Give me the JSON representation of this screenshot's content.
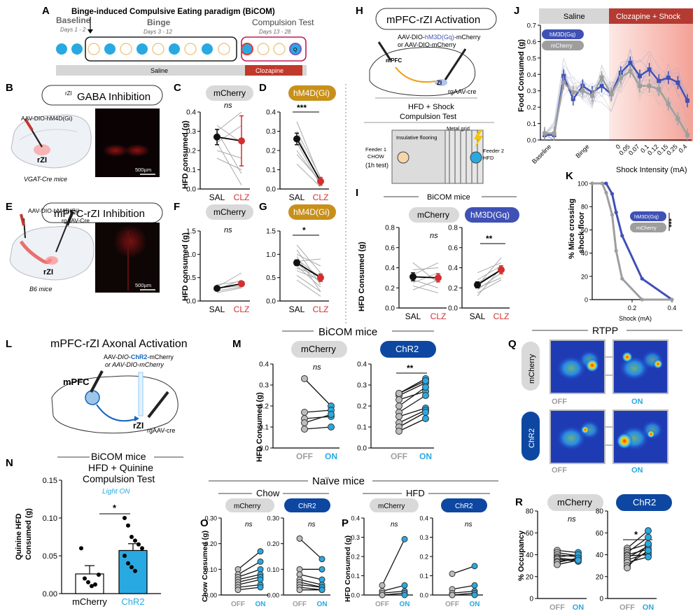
{
  "colors": {
    "saline_gray": "#4a4a4a",
    "clz_red": "#d32f2f",
    "clz_text": "#d32f2f",
    "mcherry_pill": "#d9d9d9",
    "hm4d_gold": "#c8901a",
    "hm3d_blue": "#3f51b5",
    "chr2_blue": "#0d47a1",
    "chr2_light": "#29a9e1",
    "light_on_blue": "#29a9e1",
    "gray_line": "#9e9e9e",
    "clozapine_bar": "#c0392b",
    "dot_blue": "#29a9e1"
  },
  "panelA": {
    "letter": "A",
    "title": "Binge-induced Compulsive Eating paradigm (BiCOM)",
    "phase1": "Baseline",
    "phase1_days": "Days 1 - 2",
    "phase2": "Binge",
    "phase2_days": "Days 3 - 12",
    "phase3": "Compulsion Test",
    "phase3_days": "Days 13 - 28",
    "saline_bar": "Saline",
    "clozapine_bar": "Clozapine"
  },
  "panelB": {
    "letter": "B",
    "title_sup": "rZI",
    "title_main": "GABA Inhibition",
    "virus": "AAV-DIO-hM4D(Gi)",
    "region": "rZI",
    "mice": "VGAT-Cre mice",
    "scale": "500µm"
  },
  "panelE": {
    "letter": "E",
    "title": "mPFC-rZI Inhibition",
    "virus1": "AAV-DIO-hM4D(Gi)",
    "virus2": "rgAAV-Cre",
    "region": "rZI",
    "mice": "B6 mice",
    "scale": "500µm"
  },
  "panelC": {
    "letter": "C",
    "pill": "mCherry",
    "sig": "ns",
    "ylabel": "HFD consumed (g)",
    "ticks": [
      "0.0",
      "0.1",
      "0.2",
      "0.3",
      "0.4"
    ],
    "xlabels": [
      "SAL",
      "CLZ"
    ]
  },
  "panelD": {
    "letter": "D",
    "pill": "hM4D(Gi)",
    "sig": "***",
    "ticks": [
      "0.0",
      "0.1",
      "0.2",
      "0.3",
      "0.4"
    ],
    "xlabels": [
      "SAL",
      "CLZ"
    ]
  },
  "panelF": {
    "letter": "F",
    "pill": "mCherry",
    "sig": "ns",
    "ylabel": "HFD consumed (g)",
    "ticks": [
      "0.0",
      "0.5",
      "1.0",
      "1.5"
    ],
    "xlabels": [
      "SAL",
      "CLZ"
    ]
  },
  "panelG": {
    "letter": "G",
    "pill": "hM4D(Gi)",
    "sig": "*",
    "ticks": [
      "0.0",
      "0.5",
      "1.0",
      "1.5"
    ],
    "xlabels": [
      "SAL",
      "CLZ"
    ]
  },
  "panelH": {
    "letter": "H",
    "title": "mPFC-rZI Activation",
    "virus_line1_a": "AAV-DIO-",
    "virus_line1_b": "hM3D(Gq)",
    "virus_line1_c": "-mCherry",
    "virus_line2": "or AAV-DIO-mCherry",
    "mpfc": "mPFC",
    "zi": "ZI",
    "retro": "rgAAV-cre",
    "test_title_1": "HFD + Shock",
    "test_title_2": "Compulsion Test",
    "floor1": "Insulative flooring",
    "floor2": "Metal grid",
    "feeder1_a": "Feeder 1",
    "feeder1_b": "CHOW",
    "feeder1_c": "(1h test)",
    "feeder2_a": "Feeder 2",
    "feeder2_b": "HFD"
  },
  "panelI": {
    "letter": "I",
    "header": "BiCOM mice",
    "pill1": "mCherry",
    "pill2": "hM3D(Gq)",
    "sig1": "ns",
    "sig2": "**",
    "ylabel": "HFD Consumed (g)",
    "ticks": [
      "0.0",
      "0.2",
      "0.4",
      "0.6",
      "0.8"
    ],
    "xlabels": [
      "SAL",
      "CLZ"
    ]
  },
  "panelJ": {
    "letter": "J",
    "band1": "Saline",
    "band2": "Clozapine + Shock",
    "legend1": "hM3D(Gq)",
    "legend2": "mCherry",
    "ylabel": "Food Consumed (g)",
    "xlabel": "Shock Intensity (mA)",
    "yticks": [
      "0.0",
      "0.1",
      "0.2",
      "0.3",
      "0.4",
      "0.5",
      "0.6",
      "0.7"
    ],
    "xcats": [
      "Baseline",
      "Binge",
      "0",
      "0.05",
      "0.07",
      "0.1",
      "0.12",
      "0.15",
      "0.25",
      "0.4"
    ]
  },
  "panelK": {
    "letter": "K",
    "ylabel1": "% Mice crossing",
    "ylabel2": "shock floor",
    "xlabel": "Shock (mA)",
    "legend1": "hM3D(Gq)",
    "legend2": "mCherry",
    "sig": "***",
    "yticks": [
      "0",
      "20",
      "40",
      "60",
      "80",
      "100"
    ],
    "xticks": [
      "0.2",
      "0.4"
    ]
  },
  "panelL": {
    "letter": "L",
    "title": "mPFC-rZI Axonal Activation",
    "virus_a": "AAV-",
    "virus_b": "DIO",
    "virus_c": "-",
    "virus_d": "ChR2",
    "virus_e": "-mCherry",
    "virus2": "or AAV-DIO-mCherry",
    "mpfc": "mPFC",
    "rzi": "rZI",
    "retro": "rgAAV-cre"
  },
  "panelM": {
    "letter": "M",
    "header": "BiCOM mice",
    "pill1": "mCherry",
    "pill2": "ChR2",
    "sig1": "ns",
    "sig2": "**",
    "ylabel": "HFD Consumed (g)",
    "ticks": [
      "0.0",
      "0.1",
      "0.2",
      "0.3",
      "0.4"
    ],
    "xlabels": [
      "OFF",
      "ON"
    ]
  },
  "panelN": {
    "letter": "N",
    "header": "BiCOM mice",
    "title1": "HFD + Quinine",
    "title2": "Compulsion Test",
    "light": "Light ON",
    "sig": "*",
    "ylabel1": "Quinine HFD",
    "ylabel2": "Consumed (g)",
    "ticks": [
      "0.00",
      "0.05",
      "0.10",
      "0.15"
    ],
    "xlabels": [
      "mCherry",
      "ChR2"
    ]
  },
  "panelNaive": {
    "header": "Naïve mice",
    "chow": "Chow",
    "hfd": "HFD"
  },
  "panelO": {
    "letter": "O",
    "pill1": "mCherry",
    "pill2": "ChR2",
    "sig": "ns",
    "ylabel": "Chow Consumed (g)",
    "ticks": [
      "0.00",
      "0.10",
      "0.20",
      "0.30"
    ],
    "xlabels": [
      "OFF",
      "ON"
    ]
  },
  "panelP": {
    "letter": "P",
    "pill1": "mCherry",
    "pill2": "ChR2",
    "sig": "ns",
    "ylabel": "HFD Consumed (g)",
    "ticks": [
      "0.0",
      "0.1",
      "0.2",
      "0.3",
      "0.4"
    ],
    "xlabels": [
      "OFF",
      "ON"
    ]
  },
  "panelQ": {
    "letter": "Q",
    "header": "RTPP",
    "row1": "mCherry",
    "row2": "ChR2",
    "off": "OFF",
    "on": "ON"
  },
  "panelR": {
    "letter": "R",
    "pill1": "mCherry",
    "pill2": "ChR2",
    "sig1": "ns",
    "sig2": "*",
    "ylabel": "% Occupancy",
    "ticks": [
      "0",
      "20",
      "40",
      "60",
      "80"
    ],
    "xlabels": [
      "OFF",
      "ON"
    ]
  },
  "chart_data": [
    {
      "panel": "C",
      "type": "scatter",
      "ylim": [
        0,
        0.4
      ],
      "categories": [
        "SAL",
        "CLZ"
      ],
      "mean": [
        0.27,
        0.25
      ],
      "sem": [
        0.04,
        0.13
      ],
      "subjects": [
        [
          0.3,
          0.08
        ],
        [
          0.24,
          0.02
        ],
        [
          0.2,
          0.16
        ],
        [
          0.3,
          0.4
        ],
        [
          0.24,
          0.33
        ],
        [
          0.16,
          0.1
        ],
        [
          0.33,
          0.24
        ]
      ]
    },
    {
      "panel": "D",
      "type": "scatter",
      "ylim": [
        0,
        0.4
      ],
      "categories": [
        "SAL",
        "CLZ"
      ],
      "mean": [
        0.26,
        0.04
      ],
      "sem": [
        0.03,
        0.02
      ],
      "subjects": [
        [
          0.35,
          0.05
        ],
        [
          0.3,
          0.06
        ],
        [
          0.28,
          0.03
        ],
        [
          0.24,
          0.02
        ],
        [
          0.2,
          0.03
        ],
        [
          0.18,
          0.04
        ],
        [
          0.13,
          0.01
        ]
      ]
    },
    {
      "panel": "F",
      "type": "scatter",
      "ylim": [
        0,
        1.5
      ],
      "categories": [
        "SAL",
        "CLZ"
      ],
      "mean": [
        0.27,
        0.37
      ],
      "sem": [
        0.04,
        0.05
      ],
      "subjects": [
        [
          0.3,
          0.6
        ],
        [
          0.25,
          0.45
        ],
        [
          0.22,
          0.3
        ],
        [
          0.35,
          0.42
        ],
        [
          0.18,
          0.28
        ],
        [
          0.28,
          0.32
        ]
      ]
    },
    {
      "panel": "G",
      "type": "scatter",
      "ylim": [
        0,
        1.5
      ],
      "categories": [
        "SAL",
        "CLZ"
      ],
      "mean": [
        0.82,
        0.5
      ],
      "sem": [
        0.06,
        0.08
      ],
      "subjects": [
        [
          1.2,
          0.6
        ],
        [
          1.1,
          0.35
        ],
        [
          1.0,
          0.75
        ],
        [
          0.95,
          0.2
        ],
        [
          0.9,
          0.5
        ],
        [
          0.85,
          0.9
        ],
        [
          0.8,
          0.4
        ],
        [
          0.75,
          0.3
        ],
        [
          0.7,
          0.55
        ],
        [
          0.65,
          0.45
        ],
        [
          0.55,
          0.2
        ],
        [
          0.45,
          0.1
        ]
      ]
    },
    {
      "panel": "I-mCherry",
      "type": "scatter",
      "ylim": [
        0,
        0.8
      ],
      "categories": [
        "SAL",
        "CLZ"
      ],
      "mean": [
        0.31,
        0.3
      ],
      "sem": [
        0.04,
        0.04
      ],
      "subjects": [
        [
          0.45,
          0.25
        ],
        [
          0.38,
          0.4
        ],
        [
          0.33,
          0.45
        ],
        [
          0.28,
          0.2
        ],
        [
          0.25,
          0.35
        ],
        [
          0.22,
          0.15
        ],
        [
          0.18,
          0.28
        ]
      ]
    },
    {
      "panel": "I-hM3D",
      "type": "scatter",
      "ylim": [
        0,
        0.8
      ],
      "categories": [
        "SAL",
        "CLZ"
      ],
      "mean": [
        0.23,
        0.38
      ],
      "sem": [
        0.03,
        0.04
      ],
      "subjects": [
        [
          0.35,
          0.45
        ],
        [
          0.28,
          0.42
        ],
        [
          0.25,
          0.38
        ],
        [
          0.22,
          0.5
        ],
        [
          0.2,
          0.3
        ],
        [
          0.18,
          0.35
        ],
        [
          0.15,
          0.28
        ],
        [
          0.12,
          0.4
        ]
      ]
    },
    {
      "panel": "J",
      "type": "line",
      "ylim": [
        0,
        0.7
      ],
      "categories": [
        "B1",
        "B2",
        "Bg1",
        "Bg2",
        "Bg3",
        "Bg4",
        "Bg5",
        "Bg6",
        "0",
        "0.05",
        "0.07",
        "0.1",
        "0.12",
        "0.15",
        "0.25",
        "0.4"
      ],
      "series": [
        {
          "name": "hM3D(Gq)",
          "values": [
            0.03,
            0.03,
            0.39,
            0.25,
            0.33,
            0.29,
            0.33,
            0.28,
            0.41,
            0.47,
            0.39,
            0.43,
            0.36,
            0.38,
            0.35,
            0.24
          ]
        },
        {
          "name": "mCherry",
          "values": [
            0.04,
            0.04,
            0.35,
            0.29,
            0.3,
            0.27,
            0.38,
            0.28,
            0.38,
            0.42,
            0.33,
            0.33,
            0.31,
            0.22,
            0.13,
            0.03
          ]
        }
      ]
    },
    {
      "panel": "K",
      "type": "line",
      "ylim": [
        0,
        100
      ],
      "xlim": [
        0,
        0.4
      ],
      "x": [
        0,
        0.05,
        0.07,
        0.1,
        0.12,
        0.15,
        0.25,
        0.4
      ],
      "series": [
        {
          "name": "hM3D(Gq)",
          "values": [
            100,
            100,
            100,
            91,
            75,
            55,
            18,
            0
          ]
        },
        {
          "name": "mCherry",
          "values": [
            100,
            100,
            92,
            73,
            42,
            18,
            0,
            0
          ]
        }
      ]
    },
    {
      "panel": "M-mCherry",
      "type": "scatter",
      "ylim": [
        0,
        0.4
      ],
      "categories": [
        "OFF",
        "ON"
      ],
      "subjects": [
        [
          0.33,
          0.2
        ],
        [
          0.17,
          0.18
        ],
        [
          0.14,
          0.15
        ],
        [
          0.12,
          0.16
        ],
        [
          0.09,
          0.1
        ]
      ]
    },
    {
      "panel": "M-ChR2",
      "type": "scatter",
      "ylim": [
        0,
        0.4
      ],
      "categories": [
        "OFF",
        "ON"
      ],
      "subjects": [
        [
          0.26,
          0.33
        ],
        [
          0.25,
          0.31
        ],
        [
          0.23,
          0.27
        ],
        [
          0.2,
          0.29
        ],
        [
          0.17,
          0.25
        ],
        [
          0.15,
          0.19
        ],
        [
          0.12,
          0.18
        ],
        [
          0.1,
          0.17
        ],
        [
          0.08,
          0.14
        ],
        [
          0.26,
          0.32
        ]
      ]
    },
    {
      "panel": "N",
      "type": "bar",
      "ylim": [
        0,
        0.15
      ],
      "categories": [
        "mCherry",
        "ChR2"
      ],
      "values": [
        0.026,
        0.057
      ],
      "sem": [
        0.011,
        0.009
      ],
      "points": [
        [
          0.06,
          0.02,
          0.015,
          0.01,
          0.012,
          0.025
        ],
        [
          0.1,
          0.09,
          0.075,
          0.07,
          0.065,
          0.06,
          0.05,
          0.04,
          0.035,
          0.03
        ]
      ]
    },
    {
      "panel": "O-mCherry",
      "type": "scatter",
      "ylim": [
        0,
        0.3
      ],
      "categories": [
        "OFF",
        "ON"
      ],
      "subjects": [
        [
          0.1,
          0.17
        ],
        [
          0.08,
          0.13
        ],
        [
          0.07,
          0.1
        ],
        [
          0.06,
          0.08
        ],
        [
          0.05,
          0.07
        ],
        [
          0.04,
          0.06
        ],
        [
          0.03,
          0.04
        ],
        [
          0.02,
          0.03
        ]
      ]
    },
    {
      "panel": "O-ChR2",
      "type": "scatter",
      "ylim": [
        0,
        0.3
      ],
      "categories": [
        "OFF",
        "ON"
      ],
      "subjects": [
        [
          0.22,
          0.14
        ],
        [
          0.1,
          0.1
        ],
        [
          0.08,
          0.06
        ],
        [
          0.06,
          0.04
        ],
        [
          0.05,
          0.03
        ],
        [
          0.04,
          0.03
        ],
        [
          0.03,
          0.02
        ],
        [
          0.02,
          0.02
        ]
      ]
    },
    {
      "panel": "P-mCherry",
      "type": "scatter",
      "ylim": [
        0,
        0.4
      ],
      "categories": [
        "OFF",
        "ON"
      ],
      "subjects": [
        [
          0.05,
          0.29
        ],
        [
          0.02,
          0.05
        ],
        [
          0.01,
          0.02
        ],
        [
          0.0,
          0.01
        ],
        [
          0.0,
          0.0
        ]
      ]
    },
    {
      "panel": "P-ChR2",
      "type": "scatter",
      "ylim": [
        0,
        0.4
      ],
      "categories": [
        "OFF",
        "ON"
      ],
      "subjects": [
        [
          0.11,
          0.15
        ],
        [
          0.03,
          0.05
        ],
        [
          0.01,
          0.02
        ],
        [
          0.0,
          0.01
        ],
        [
          0.0,
          0.0
        ]
      ]
    },
    {
      "panel": "R-mCherry",
      "type": "scatter",
      "ylim": [
        0,
        80
      ],
      "categories": [
        "OFF",
        "ON"
      ],
      "subjects": [
        [
          44,
          42
        ],
        [
          42,
          39
        ],
        [
          40,
          38
        ],
        [
          38,
          40
        ],
        [
          37,
          35
        ],
        [
          36,
          34
        ],
        [
          34,
          36
        ],
        [
          33,
          37
        ],
        [
          31,
          35
        ]
      ]
    },
    {
      "panel": "R-ChR2",
      "type": "scatter",
      "ylim": [
        0,
        80
      ],
      "categories": [
        "OFF",
        "ON"
      ],
      "subjects": [
        [
          46,
          62
        ],
        [
          44,
          50
        ],
        [
          42,
          56
        ],
        [
          40,
          45
        ],
        [
          39,
          40
        ],
        [
          37,
          48
        ],
        [
          35,
          42
        ],
        [
          33,
          38
        ],
        [
          30,
          44
        ],
        [
          28,
          50
        ]
      ]
    }
  ]
}
